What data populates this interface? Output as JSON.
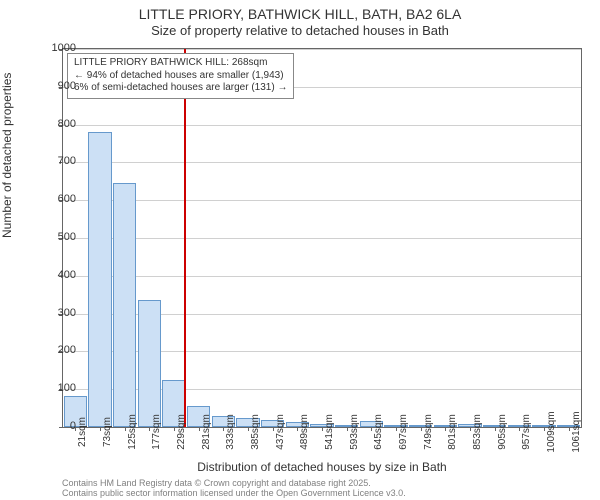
{
  "chart": {
    "type": "histogram",
    "title_line1": "LITTLE PRIORY, BATHWICK HILL, BATH, BA2 6LA",
    "title_line2": "Size of property relative to detached houses in Bath",
    "title_fontsize": 14,
    "subtitle_fontsize": 13,
    "ylabel": "Number of detached properties",
    "xlabel": "Distribution of detached houses by size in Bath",
    "label_fontsize": 12,
    "ylim": [
      0,
      1000
    ],
    "ytick_step": 100,
    "yticks": [
      0,
      100,
      200,
      300,
      400,
      500,
      600,
      700,
      800,
      900,
      1000
    ],
    "xticks": [
      "21sqm",
      "73sqm",
      "125sqm",
      "177sqm",
      "229sqm",
      "281sqm",
      "333sqm",
      "385sqm",
      "437sqm",
      "489sqm",
      "541sqm",
      "593sqm",
      "645sqm",
      "697sqm",
      "749sqm",
      "801sqm",
      "853sqm",
      "905sqm",
      "957sqm",
      "1009sqm",
      "1061sqm"
    ],
    "bar_values": [
      82,
      780,
      645,
      335,
      125,
      55,
      30,
      25,
      18,
      12,
      8,
      5,
      15,
      3,
      2,
      4,
      7,
      2,
      3,
      2,
      2
    ],
    "bar_fill_color": "#cce0f5",
    "bar_border_color": "#6699cc",
    "background_color": "#ffffff",
    "grid_color": "#d0d0d0",
    "axis_color": "#666666",
    "tick_fontsize": 11,
    "xtick_fontsize": 10,
    "marker": {
      "position_index": 4.9,
      "line_color": "#cc0000",
      "annotation": {
        "lines": [
          "LITTLE PRIORY BATHWICK HILL: 268sqm",
          "← 94% of detached houses are smaller (1,943)",
          "6% of semi-detached houses are larger (131) →"
        ],
        "border_color": "#888888",
        "bg_color": "#ffffff",
        "fontsize": 10
      }
    },
    "footer_line1": "Contains HM Land Registry data © Crown copyright and database right 2025.",
    "footer_line2": "Contains public sector information licensed under the Open Government Licence v3.0.",
    "footer_color": "#808080",
    "footer_fontsize": 9
  }
}
